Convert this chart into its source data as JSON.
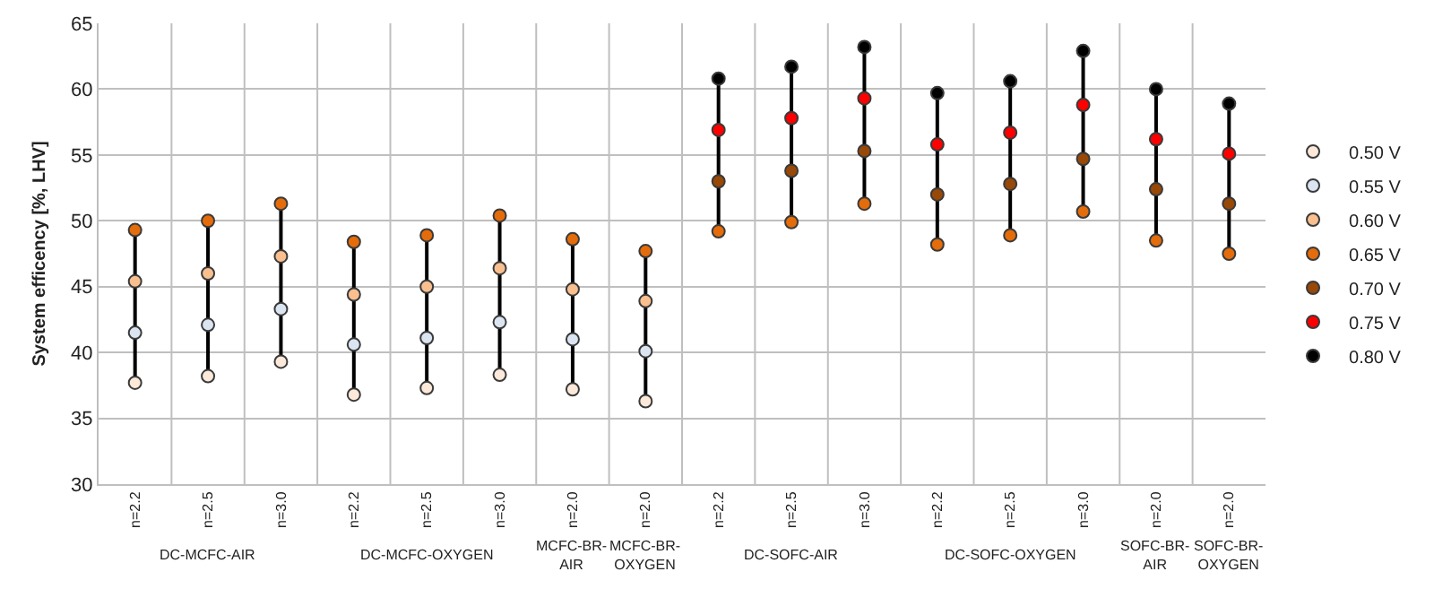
{
  "chart_data": {
    "type": "scatter",
    "ylabel": "System efficency [%, LHV]",
    "categories": [
      "n=2.2",
      "n=2.5",
      "n=3.0",
      "n=2.2",
      "n=2.5",
      "n=3.0",
      "n=2.0",
      "n=2.0",
      "n=2.2",
      "n=2.5",
      "n=3.0",
      "n=2.2",
      "n=2.5",
      "n=3.0",
      "n=2.0",
      "n=2.0"
    ],
    "series": [
      {
        "name": "0.50 V",
        "color": "#fde9d9",
        "values": [
          37.7,
          38.2,
          39.3,
          36.8,
          37.3,
          38.3,
          37.2,
          36.3,
          null,
          null,
          null,
          null,
          null,
          null,
          null,
          null
        ]
      },
      {
        "name": "0.55 V",
        "color": "#dbe5f1",
        "values": [
          41.5,
          42.1,
          43.3,
          40.6,
          41.1,
          42.3,
          41.0,
          40.1,
          null,
          null,
          null,
          null,
          null,
          null,
          null,
          null
        ]
      },
      {
        "name": "0.60 V",
        "color": "#fabf8f",
        "values": [
          45.4,
          46.0,
          47.3,
          44.4,
          45.0,
          46.4,
          44.8,
          43.9,
          null,
          null,
          null,
          null,
          null,
          null,
          null,
          null
        ]
      },
      {
        "name": "0.65 V",
        "color": "#e46c0a",
        "values": [
          49.3,
          50.0,
          51.3,
          48.4,
          48.9,
          50.4,
          48.6,
          47.7,
          49.2,
          49.9,
          51.3,
          48.2,
          48.9,
          50.7,
          48.5,
          47.5
        ]
      },
      {
        "name": "0.70 V",
        "color": "#984807",
        "values": [
          null,
          null,
          null,
          null,
          null,
          null,
          null,
          null,
          53.0,
          53.8,
          55.3,
          52.0,
          52.8,
          54.7,
          52.4,
          51.3
        ]
      },
      {
        "name": "0.75 V",
        "color": "#ff0000",
        "values": [
          null,
          null,
          null,
          null,
          null,
          null,
          null,
          null,
          56.9,
          57.8,
          59.3,
          55.8,
          56.7,
          58.8,
          56.2,
          55.1
        ]
      },
      {
        "name": "0.80 V",
        "color": "#000000",
        "values": [
          null,
          null,
          null,
          null,
          null,
          null,
          null,
          null,
          60.8,
          61.7,
          63.2,
          59.7,
          60.6,
          62.9,
          60.0,
          58.9
        ]
      }
    ],
    "annotations": [
      "DC-MCFC-AIR",
      "DC-MCFC-OXYGEN",
      "MCFC-BR-AIR",
      "MCFC-BR-OXYGEN",
      "DC-SOFC-AIR",
      "DC-SOFC-OXYGEN",
      "SOFC-BR-AIR",
      "SOFC-BR-OXYGEN"
    ],
    "ylim": [
      30,
      65
    ],
    "yticks": [
      30,
      35,
      40,
      45,
      50,
      55,
      60,
      65
    ],
    "grid": true,
    "legend": "right",
    "marker": "circle"
  }
}
